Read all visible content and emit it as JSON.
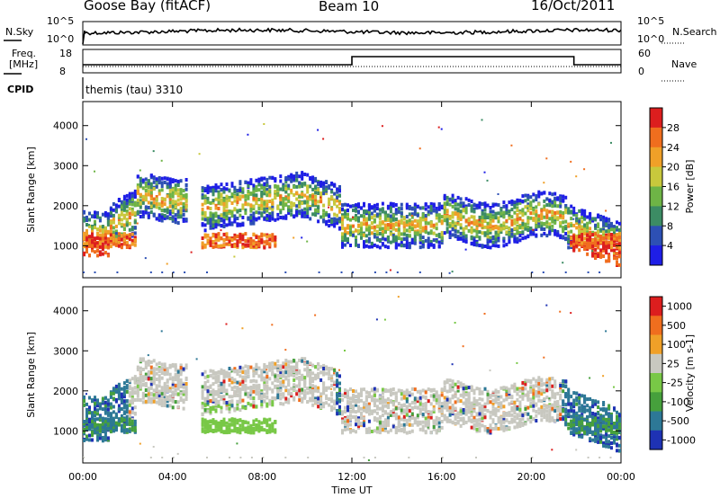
{
  "header": {
    "station": "Goose Bay (fitACF)",
    "beam": "Beam 10",
    "date": "16/Oct/2011"
  },
  "noise_panel": {
    "left_label": "N.Sky",
    "right_label": "N.Search",
    "left_ticks": [
      "10^5",
      "10^0"
    ],
    "right_ticks": [
      "10^5",
      "10^0"
    ]
  },
  "freq_panel": {
    "left_label_1": "Freq.",
    "left_label_2": "[MHz]",
    "right_label": "Nave",
    "left_ticks": [
      "18",
      "8"
    ],
    "right_ticks": [
      "60",
      "0"
    ]
  },
  "cpid": {
    "label": "CPID",
    "value": "themis (tau) 3310"
  },
  "colors": {
    "velocity_ground_scatter": "#c8c8c0",
    "power_low": "#1e32c8",
    "power_high": "#dc1e1e"
  },
  "chart_data": [
    {
      "type": "heatmap",
      "title": "",
      "xlabel": "",
      "ylabel": "Slant Range [km]",
      "x_ticks": [
        "00:00",
        "04:00",
        "08:00",
        "12:00",
        "16:00",
        "20:00",
        "00:00"
      ],
      "y_ticks": [
        1000,
        2000,
        3000,
        4000
      ],
      "ylim": [
        200,
        4600
      ],
      "colorbar": {
        "label": "Power [dB]",
        "ticks": [
          "4",
          "8",
          "12",
          "16",
          "20",
          "24",
          "28"
        ],
        "colors": [
          "#1e1ee6",
          "#2d50b4",
          "#3c8c64",
          "#6eb446",
          "#c8c83c",
          "#f0a028",
          "#f06e1e",
          "#dc1e1e"
        ]
      }
    },
    {
      "type": "heatmap",
      "title": "",
      "xlabel": "Time UT",
      "ylabel": "Slant Range [km]",
      "x_ticks": [
        "00:00",
        "04:00",
        "08:00",
        "12:00",
        "16:00",
        "20:00",
        "00:00"
      ],
      "y_ticks": [
        1000,
        2000,
        3000,
        4000
      ],
      "ylim": [
        200,
        4600
      ],
      "colorbar": {
        "label": "Velocity [m s-1]",
        "ticks": [
          "1000",
          "500",
          "100",
          "25",
          "-25",
          "-100",
          "-500",
          "-1000"
        ],
        "colors": [
          "#1e32b4",
          "#2d7896",
          "#46a03c",
          "#78c846",
          "#c8c8c0",
          "#f0a028",
          "#f06e1e",
          "#dc1e1e"
        ]
      }
    }
  ]
}
